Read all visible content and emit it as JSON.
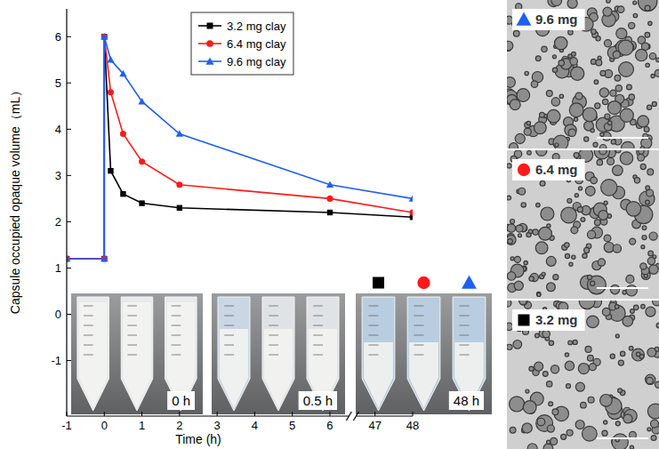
{
  "chart_data": {
    "type": "line",
    "x_label": "Time (h)",
    "y_label": "Capsule occupied opaque volume（mL）",
    "x": [
      -1,
      0,
      0,
      0.17,
      0.5,
      1,
      2,
      6,
      48
    ],
    "series": [
      {
        "name": "3.2 mg clay",
        "color": "#000000",
        "marker": "square",
        "line_style": "solid",
        "values": [
          1.2,
          1.2,
          6.0,
          3.1,
          2.6,
          2.4,
          2.3,
          2.2,
          2.1
        ]
      },
      {
        "name": "6.4 mg clay",
        "color": "#ff1a1a",
        "marker": "circle",
        "line_style": "solid",
        "values": [
          1.2,
          1.2,
          6.0,
          4.8,
          3.9,
          3.3,
          2.8,
          2.5,
          2.2
        ]
      },
      {
        "name": "9.6 mg clay",
        "color": "#2060f0",
        "marker": "triangle",
        "line_style": "solid",
        "values": [
          1.2,
          1.2,
          6.0,
          5.5,
          5.2,
          4.6,
          3.9,
          2.8,
          2.5
        ]
      }
    ],
    "xlim": [
      -1,
      48
    ],
    "xticks": [
      -1,
      0,
      1,
      2,
      3,
      4,
      5,
      6,
      47,
      48
    ],
    "ylim": [
      -2.2,
      6.6
    ],
    "yticks": [
      -1,
      0,
      1,
      2,
      3,
      4,
      5,
      6
    ],
    "grid": false,
    "legend": "top"
  },
  "photos": [
    {
      "label": "0 h"
    },
    {
      "label": "0.5 h"
    },
    {
      "label": "48 h"
    }
  ],
  "micrographs": [
    {
      "label": "9.6 mg",
      "marker": "triangle",
      "color": "#2060f0"
    },
    {
      "label": "6.4 mg",
      "marker": "circle",
      "color": "#ff1a1a"
    },
    {
      "label": "3.2 mg",
      "marker": "square",
      "color": "#000000"
    }
  ]
}
